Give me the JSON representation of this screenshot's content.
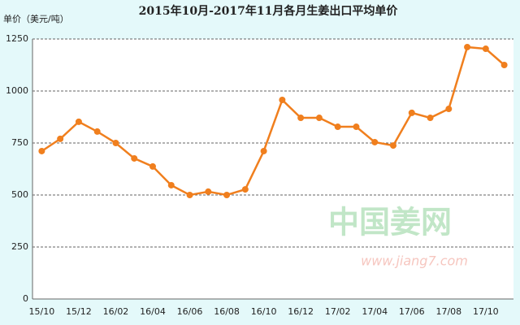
{
  "chart_data": {
    "type": "line",
    "title": "2015年10月-2017年11月各月生姜出口平均单价",
    "y_label": "单价（美元/吨）",
    "watermark": "中国姜网",
    "watermark_url": "www.jiang7.com",
    "categories": [
      "15/10",
      null,
      "15/12",
      null,
      "16/02",
      null,
      "16/04",
      null,
      "16/06",
      null,
      "16/08",
      null,
      "16/10",
      null,
      "16/12",
      null,
      "17/02",
      null,
      "17/04",
      null,
      "17/06",
      null,
      "17/08",
      null,
      "17/10",
      null
    ],
    "series": [
      {
        "name": "单价",
        "color": "#f07f1e",
        "values": [
          711,
          770,
          852,
          805,
          750,
          676,
          637,
          547,
          500,
          516,
          500,
          527,
          711,
          957,
          871,
          871,
          828,
          828,
          754,
          738,
          895,
          871,
          914,
          1211,
          1203,
          1125
        ]
      }
    ],
    "ylim": [
      0,
      1250
    ],
    "yticks": [
      0,
      250,
      500,
      750,
      1000,
      1250
    ],
    "grid": true
  }
}
